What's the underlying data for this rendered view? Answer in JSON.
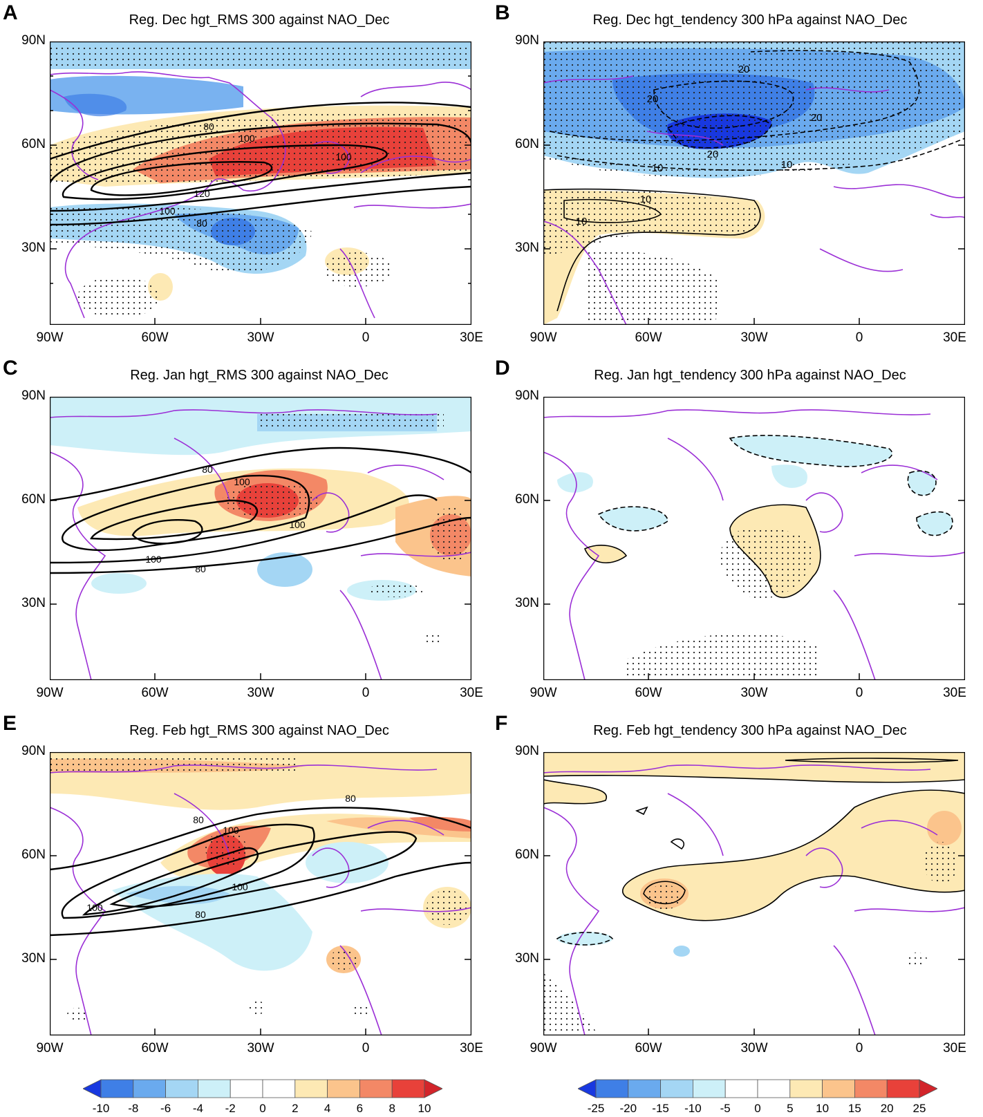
{
  "panels": [
    {
      "id": "A",
      "label": "A",
      "title": "Reg. Dec hgt_RMS 300 against NAO_Dec",
      "kind": "rms",
      "contour_labels": [
        "80",
        "100",
        "120",
        "100",
        "80",
        "100"
      ]
    },
    {
      "id": "B",
      "label": "B",
      "title": "Reg. Dec hgt_tendency 300 hPa against NAO_Dec",
      "kind": "tend",
      "contour_labels": [
        "20",
        "20",
        "20",
        "20",
        "10",
        "10",
        "10",
        "10"
      ]
    },
    {
      "id": "C",
      "label": "C",
      "title": "Reg. Jan hgt_RMS 300 against NAO_Dec",
      "kind": "rms",
      "contour_labels": [
        "80",
        "100",
        "100",
        "100",
        "80"
      ]
    },
    {
      "id": "D",
      "label": "D",
      "title": "Reg. Jan hgt_tendency 300 hPa against NAO_Dec",
      "kind": "tend",
      "contour_labels": []
    },
    {
      "id": "E",
      "label": "E",
      "title": "Reg. Feb hgt_RMS 300 against NAO_Dec",
      "kind": "rms",
      "contour_labels": [
        "80",
        "80",
        "100",
        "100",
        "100",
        "80"
      ]
    },
    {
      "id": "F",
      "label": "F",
      "title": "Reg. Feb hgt_tendency 300 hPa against NAO_Dec",
      "kind": "tend",
      "contour_labels": []
    }
  ],
  "axes": {
    "lat_labels": [
      "90N",
      "60N",
      "30N"
    ],
    "lon_labels": [
      "90W",
      "60W",
      "30W",
      "0",
      "30E"
    ]
  },
  "colorbars": [
    {
      "name": "rms",
      "labels": [
        "-10",
        "-8",
        "-6",
        "-4",
        "-2",
        "0",
        "2",
        "4",
        "6",
        "8",
        "10"
      ],
      "colors": [
        "#1838e0",
        "#3f7fe6",
        "#6aaaee",
        "#a4d6f4",
        "#cdf0f8",
        "#ffffff",
        "#ffffff",
        "#fde9b4",
        "#fbc48c",
        "#f38866",
        "#e8413a",
        "#d2242a"
      ]
    },
    {
      "name": "tend",
      "labels": [
        "-25",
        "-20",
        "-15",
        "-10",
        "-5",
        "0",
        "5",
        "10",
        "15",
        "20",
        "25"
      ],
      "colors": [
        "#1838e0",
        "#3f7fe6",
        "#6aaaee",
        "#a4d6f4",
        "#cdf0f8",
        "#ffffff",
        "#ffffff",
        "#fde9b4",
        "#fbc48c",
        "#f38866",
        "#e8413a",
        "#d2242a"
      ]
    }
  ]
}
